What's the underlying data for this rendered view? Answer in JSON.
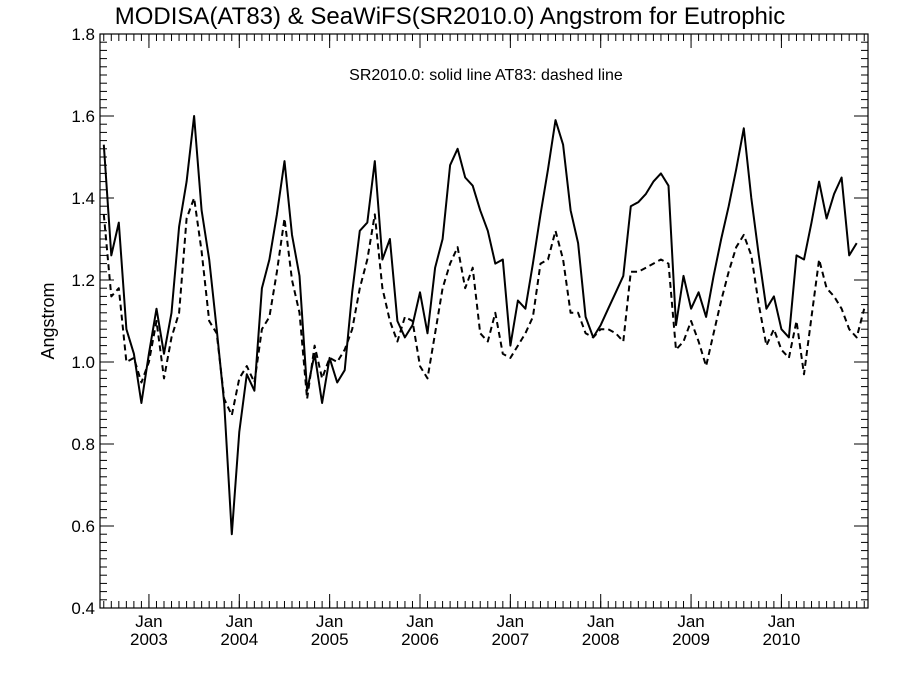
{
  "chart_data": {
    "type": "line",
    "title": "MODISA(AT83) & SeaWiFS(SR2010.0)  Angstrom for Eutrophic",
    "annotation": "SR2010.0: solid line   AT83: dashed line",
    "ylabel": "Angstrom",
    "xlabel": "",
    "ylim": [
      0.4,
      1.8
    ],
    "xlim": [
      "2002-07",
      "2010-12"
    ],
    "yticks": [
      0.4,
      0.6,
      0.8,
      1.0,
      1.2,
      1.4,
      1.6,
      1.8
    ],
    "ytick_labels": [
      "0.4",
      "0.6",
      "0.8",
      "1.0",
      "1.2",
      "1.4",
      "1.6",
      "1.8"
    ],
    "xticks": [
      {
        "date": "2003-01",
        "month": "Jan",
        "year": "2003"
      },
      {
        "date": "2004-01",
        "month": "Jan",
        "year": "2004"
      },
      {
        "date": "2005-01",
        "month": "Jan",
        "year": "2005"
      },
      {
        "date": "2006-01",
        "month": "Jan",
        "year": "2006"
      },
      {
        "date": "2007-01",
        "month": "Jan",
        "year": "2007"
      },
      {
        "date": "2008-01",
        "month": "Jan",
        "year": "2008"
      },
      {
        "date": "2009-01",
        "month": "Jan",
        "year": "2009"
      },
      {
        "date": "2010-01",
        "month": "Jan",
        "year": "2010"
      }
    ],
    "grid": false,
    "series": [
      {
        "name": "SR2010.0",
        "style": "solid",
        "color": "#000000",
        "points": [
          [
            "2002-07",
            1.53
          ],
          [
            "2002-08",
            1.26
          ],
          [
            "2002-09",
            1.34
          ],
          [
            "2002-10",
            1.08
          ],
          [
            "2002-11",
            1.02
          ],
          [
            "2002-12",
            0.9
          ],
          [
            "2003-01",
            1.02
          ],
          [
            "2003-02",
            1.13
          ],
          [
            "2003-03",
            1.02
          ],
          [
            "2003-04",
            1.12
          ],
          [
            "2003-05",
            1.33
          ],
          [
            "2003-06",
            1.44
          ],
          [
            "2003-07",
            1.6
          ],
          [
            "2003-08",
            1.37
          ],
          [
            "2003-09",
            1.25
          ],
          [
            "2003-10",
            1.08
          ],
          [
            "2003-11",
            0.9
          ],
          [
            "2003-12",
            0.58
          ],
          [
            "2004-01",
            0.83
          ],
          [
            "2004-02",
            0.97
          ],
          [
            "2004-03",
            0.93
          ],
          [
            "2004-04",
            1.18
          ],
          [
            "2004-05",
            1.25
          ],
          [
            "2004-06",
            1.36
          ],
          [
            "2004-07",
            1.49
          ],
          [
            "2004-08",
            1.31
          ],
          [
            "2004-09",
            1.21
          ],
          [
            "2004-10",
            0.93
          ],
          [
            "2004-11",
            1.02
          ],
          [
            "2004-12",
            0.9
          ],
          [
            "2005-01",
            1.01
          ],
          [
            "2005-02",
            0.95
          ],
          [
            "2005-03",
            0.98
          ],
          [
            "2005-04",
            1.17
          ],
          [
            "2005-05",
            1.32
          ],
          [
            "2005-06",
            1.34
          ],
          [
            "2005-07",
            1.49
          ],
          [
            "2005-08",
            1.25
          ],
          [
            "2005-09",
            1.3
          ],
          [
            "2005-10",
            1.1
          ],
          [
            "2005-11",
            1.06
          ],
          [
            "2005-12",
            1.09
          ],
          [
            "2006-01",
            1.17
          ],
          [
            "2006-02",
            1.07
          ],
          [
            "2006-03",
            1.23
          ],
          [
            "2006-04",
            1.3
          ],
          [
            "2006-05",
            1.48
          ],
          [
            "2006-06",
            1.52
          ],
          [
            "2006-07",
            1.45
          ],
          [
            "2006-08",
            1.43
          ],
          [
            "2006-09",
            1.37
          ],
          [
            "2006-10",
            1.32
          ],
          [
            "2006-11",
            1.24
          ],
          [
            "2006-12",
            1.25
          ],
          [
            "2007-01",
            1.04
          ],
          [
            "2007-02",
            1.15
          ],
          [
            "2007-03",
            1.13
          ],
          [
            "2007-04",
            1.24
          ],
          [
            "2007-05",
            1.36
          ],
          [
            "2007-06",
            1.47
          ],
          [
            "2007-07",
            1.59
          ],
          [
            "2007-08",
            1.53
          ],
          [
            "2007-09",
            1.37
          ],
          [
            "2007-10",
            1.29
          ],
          [
            "2007-11",
            1.11
          ],
          [
            "2007-12",
            1.06
          ],
          [
            "2008-01",
            1.09
          ],
          [
            "2008-02",
            1.13
          ],
          [
            "2008-03",
            1.17
          ],
          [
            "2008-04",
            1.21
          ],
          [
            "2008-05",
            1.38
          ],
          [
            "2008-06",
            1.39
          ],
          [
            "2008-07",
            1.41
          ],
          [
            "2008-08",
            1.44
          ],
          [
            "2008-09",
            1.46
          ],
          [
            "2008-10",
            1.43
          ],
          [
            "2008-11",
            1.09
          ],
          [
            "2008-12",
            1.21
          ],
          [
            "2009-01",
            1.13
          ],
          [
            "2009-02",
            1.17
          ],
          [
            "2009-03",
            1.11
          ],
          [
            "2009-04",
            1.21
          ],
          [
            "2009-05",
            1.3
          ],
          [
            "2009-06",
            1.38
          ],
          [
            "2009-07",
            1.47
          ],
          [
            "2009-08",
            1.57
          ],
          [
            "2009-09",
            1.4
          ],
          [
            "2009-10",
            1.26
          ],
          [
            "2009-11",
            1.13
          ],
          [
            "2009-12",
            1.16
          ],
          [
            "2010-01",
            1.08
          ],
          [
            "2010-02",
            1.06
          ],
          [
            "2010-03",
            1.26
          ],
          [
            "2010-04",
            1.25
          ],
          [
            "2010-05",
            1.34
          ],
          [
            "2010-06",
            1.44
          ],
          [
            "2010-07",
            1.35
          ],
          [
            "2010-08",
            1.41
          ],
          [
            "2010-09",
            1.45
          ],
          [
            "2010-10",
            1.26
          ],
          [
            "2010-11",
            1.29
          ]
        ]
      },
      {
        "name": "AT83",
        "style": "dashed",
        "color": "#000000",
        "points": [
          [
            "2002-07",
            1.36
          ],
          [
            "2002-08",
            1.16
          ],
          [
            "2002-09",
            1.18
          ],
          [
            "2002-10",
            1.0
          ],
          [
            "2002-11",
            1.01
          ],
          [
            "2002-12",
            0.95
          ],
          [
            "2003-01",
            1.0
          ],
          [
            "2003-02",
            1.1
          ],
          [
            "2003-03",
            0.96
          ],
          [
            "2003-04",
            1.06
          ],
          [
            "2003-05",
            1.12
          ],
          [
            "2003-06",
            1.35
          ],
          [
            "2003-07",
            1.4
          ],
          [
            "2003-08",
            1.27
          ],
          [
            "2003-09",
            1.1
          ],
          [
            "2003-10",
            1.07
          ],
          [
            "2003-11",
            0.91
          ],
          [
            "2003-12",
            0.87
          ],
          [
            "2004-01",
            0.96
          ],
          [
            "2004-02",
            0.99
          ],
          [
            "2004-03",
            0.95
          ],
          [
            "2004-04",
            1.08
          ],
          [
            "2004-05",
            1.11
          ],
          [
            "2004-06",
            1.22
          ],
          [
            "2004-07",
            1.35
          ],
          [
            "2004-08",
            1.2
          ],
          [
            "2004-09",
            1.12
          ],
          [
            "2004-10",
            0.91
          ],
          [
            "2004-11",
            1.04
          ],
          [
            "2004-12",
            0.96
          ],
          [
            "2005-01",
            1.01
          ],
          [
            "2005-02",
            1.0
          ],
          [
            "2005-03",
            1.03
          ],
          [
            "2005-04",
            1.08
          ],
          [
            "2005-05",
            1.18
          ],
          [
            "2005-06",
            1.25
          ],
          [
            "2005-07",
            1.36
          ],
          [
            "2005-08",
            1.18
          ],
          [
            "2005-09",
            1.1
          ],
          [
            "2005-10",
            1.05
          ],
          [
            "2005-11",
            1.11
          ],
          [
            "2005-12",
            1.1
          ],
          [
            "2006-01",
            0.99
          ],
          [
            "2006-02",
            0.96
          ],
          [
            "2006-03",
            1.07
          ],
          [
            "2006-04",
            1.18
          ],
          [
            "2006-05",
            1.24
          ],
          [
            "2006-06",
            1.28
          ],
          [
            "2006-07",
            1.18
          ],
          [
            "2006-08",
            1.23
          ],
          [
            "2006-09",
            1.07
          ],
          [
            "2006-10",
            1.05
          ],
          [
            "2006-11",
            1.12
          ],
          [
            "2006-12",
            1.02
          ],
          [
            "2007-01",
            1.01
          ],
          [
            "2007-02",
            1.04
          ],
          [
            "2007-03",
            1.07
          ],
          [
            "2007-04",
            1.11
          ],
          [
            "2007-05",
            1.24
          ],
          [
            "2007-06",
            1.25
          ],
          [
            "2007-07",
            1.32
          ],
          [
            "2007-08",
            1.25
          ],
          [
            "2007-09",
            1.12
          ],
          [
            "2007-10",
            1.12
          ],
          [
            "2007-11",
            1.07
          ],
          [
            "2007-12",
            1.06
          ],
          [
            "2008-01",
            1.08
          ],
          [
            "2008-02",
            1.08
          ],
          [
            "2008-03",
            1.07
          ],
          [
            "2008-04",
            1.05
          ],
          [
            "2008-05",
            1.22
          ],
          [
            "2008-06",
            1.22
          ],
          [
            "2008-07",
            1.23
          ],
          [
            "2008-08",
            1.24
          ],
          [
            "2008-09",
            1.25
          ],
          [
            "2008-10",
            1.24
          ],
          [
            "2008-11",
            1.03
          ],
          [
            "2008-12",
            1.05
          ],
          [
            "2009-01",
            1.1
          ],
          [
            "2009-02",
            1.05
          ],
          [
            "2009-03",
            0.99
          ],
          [
            "2009-04",
            1.07
          ],
          [
            "2009-05",
            1.15
          ],
          [
            "2009-06",
            1.22
          ],
          [
            "2009-07",
            1.28
          ],
          [
            "2009-08",
            1.31
          ],
          [
            "2009-09",
            1.26
          ],
          [
            "2009-10",
            1.14
          ],
          [
            "2009-11",
            1.04
          ],
          [
            "2009-12",
            1.08
          ],
          [
            "2010-01",
            1.03
          ],
          [
            "2010-02",
            1.01
          ],
          [
            "2010-03",
            1.1
          ],
          [
            "2010-04",
            0.97
          ],
          [
            "2010-05",
            1.11
          ],
          [
            "2010-06",
            1.25
          ],
          [
            "2010-07",
            1.18
          ],
          [
            "2010-08",
            1.16
          ],
          [
            "2010-09",
            1.13
          ],
          [
            "2010-10",
            1.08
          ],
          [
            "2010-11",
            1.06
          ],
          [
            "2010-12",
            1.13
          ]
        ]
      }
    ]
  }
}
